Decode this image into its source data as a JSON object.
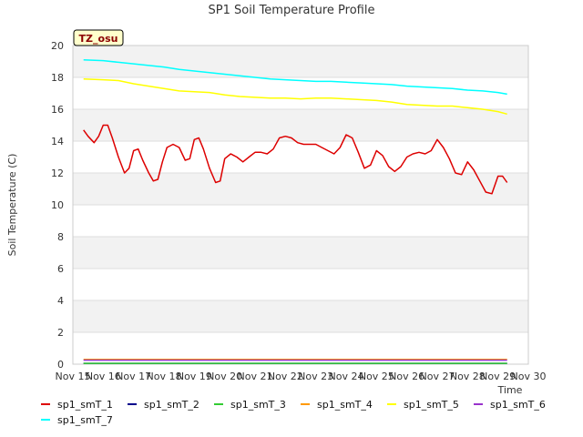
{
  "chart_data": {
    "type": "line",
    "title": "SP1 Soil Temperature Profile",
    "xlabel": "Time",
    "ylabel": "Soil Temperature (C)",
    "site_badge": "TZ_osu",
    "xlim": [
      15,
      30
    ],
    "ylim": [
      0,
      20
    ],
    "x_ticks": [
      15,
      16,
      17,
      18,
      19,
      20,
      21,
      22,
      23,
      24,
      25,
      26,
      27,
      28,
      29,
      30
    ],
    "x_tick_labels": [
      "Nov 15",
      "Nov 16",
      "Nov 17",
      "Nov 18",
      "Nov 19",
      "Nov 20",
      "Nov 21",
      "Nov 22",
      "Nov 23",
      "Nov 24",
      "Nov 25",
      "Nov 26",
      "Nov 27",
      "Nov 28",
      "Nov 29",
      "Nov 30"
    ],
    "y_ticks": [
      0,
      2,
      4,
      6,
      8,
      10,
      12,
      14,
      16,
      18,
      20
    ],
    "y_tick_labels": [
      "0",
      "2",
      "4",
      "6",
      "8",
      "10",
      "12",
      "14",
      "16",
      "18",
      "20"
    ],
    "grid": true,
    "legend_position": "bottom",
    "series": [
      {
        "name": "sp1_smT_1",
        "color": "#dd0000",
        "x": [
          15.35,
          15.5,
          15.7,
          15.85,
          16.0,
          16.15,
          16.3,
          16.5,
          16.7,
          16.85,
          17.0,
          17.15,
          17.3,
          17.5,
          17.65,
          17.8,
          17.95,
          18.1,
          18.3,
          18.5,
          18.7,
          18.85,
          19.0,
          19.15,
          19.3,
          19.5,
          19.7,
          19.85,
          20.0,
          20.2,
          20.4,
          20.6,
          20.8,
          21.0,
          21.2,
          21.4,
          21.6,
          21.8,
          22.0,
          22.2,
          22.4,
          22.6,
          22.8,
          23.0,
          23.2,
          23.4,
          23.6,
          23.8,
          24.0,
          24.2,
          24.4,
          24.6,
          24.8,
          25.0,
          25.2,
          25.4,
          25.6,
          25.8,
          26.0,
          26.2,
          26.4,
          26.6,
          26.8,
          27.0,
          27.2,
          27.4,
          27.6,
          27.8,
          28.0,
          28.2,
          28.4,
          28.6,
          28.8,
          29.0,
          29.15,
          29.3
        ],
        "y": [
          14.7,
          14.3,
          13.9,
          14.3,
          15.0,
          15.0,
          14.2,
          13.0,
          12.0,
          12.3,
          13.4,
          13.5,
          12.8,
          12.0,
          11.5,
          11.6,
          12.7,
          13.6,
          13.8,
          13.6,
          12.8,
          12.9,
          14.1,
          14.2,
          13.5,
          12.3,
          11.4,
          11.5,
          12.9,
          13.2,
          13.0,
          12.7,
          13.0,
          13.3,
          13.3,
          13.2,
          13.5,
          14.2,
          14.3,
          14.2,
          13.9,
          13.8,
          13.8,
          13.8,
          13.6,
          13.4,
          13.2,
          13.6,
          14.4,
          14.2,
          13.3,
          12.3,
          12.5,
          13.4,
          13.1,
          12.4,
          12.1,
          12.4,
          13.0,
          13.2,
          13.3,
          13.2,
          13.4,
          14.1,
          13.6,
          12.9,
          12.0,
          11.9,
          12.7,
          12.2,
          11.5,
          10.8,
          10.7,
          11.8,
          11.8,
          11.4
        ]
      },
      {
        "name": "sp1_smT_2",
        "color": "#00008b",
        "x": [
          15.35,
          29.3
        ],
        "y": [
          0.05,
          0.05
        ]
      },
      {
        "name": "sp1_smT_3",
        "color": "#33cc33",
        "x": [
          15.35,
          29.3
        ],
        "y": [
          0.05,
          0.05
        ]
      },
      {
        "name": "sp1_smT_4",
        "color": "#ff9900",
        "x": [
          15.35,
          29.3
        ],
        "y": [
          0.3,
          0.3
        ]
      },
      {
        "name": "sp1_smT_5",
        "color": "#ffff00",
        "x": [
          15.35,
          16.0,
          16.5,
          17.0,
          17.5,
          18.0,
          18.5,
          19.0,
          19.5,
          20.0,
          20.5,
          21.0,
          21.5,
          22.0,
          22.5,
          23.0,
          23.5,
          24.0,
          24.5,
          25.0,
          25.5,
          26.0,
          26.5,
          27.0,
          27.5,
          28.0,
          28.5,
          29.0,
          29.3
        ],
        "y": [
          17.9,
          17.85,
          17.8,
          17.6,
          17.45,
          17.3,
          17.15,
          17.1,
          17.05,
          16.9,
          16.8,
          16.75,
          16.7,
          16.7,
          16.65,
          16.7,
          16.7,
          16.65,
          16.6,
          16.55,
          16.45,
          16.3,
          16.25,
          16.2,
          16.2,
          16.1,
          16.0,
          15.85,
          15.7
        ]
      },
      {
        "name": "sp1_smT_6",
        "color": "#9933cc",
        "x": [
          15.35,
          29.3
        ],
        "y": [
          0.25,
          0.25
        ]
      },
      {
        "name": "sp1_smT_7",
        "color": "#00ffff",
        "x": [
          15.35,
          16.0,
          16.5,
          17.0,
          17.5,
          18.0,
          18.5,
          19.0,
          19.5,
          20.0,
          20.5,
          21.0,
          21.5,
          22.0,
          22.5,
          23.0,
          23.5,
          24.0,
          24.5,
          25.0,
          25.5,
          26.0,
          26.5,
          27.0,
          27.5,
          28.0,
          28.5,
          29.0,
          29.3
        ],
        "y": [
          19.1,
          19.05,
          18.95,
          18.85,
          18.75,
          18.65,
          18.5,
          18.4,
          18.3,
          18.2,
          18.1,
          18.0,
          17.9,
          17.85,
          17.8,
          17.75,
          17.75,
          17.7,
          17.65,
          17.6,
          17.55,
          17.45,
          17.4,
          17.35,
          17.3,
          17.2,
          17.15,
          17.05,
          16.95
        ]
      }
    ]
  }
}
